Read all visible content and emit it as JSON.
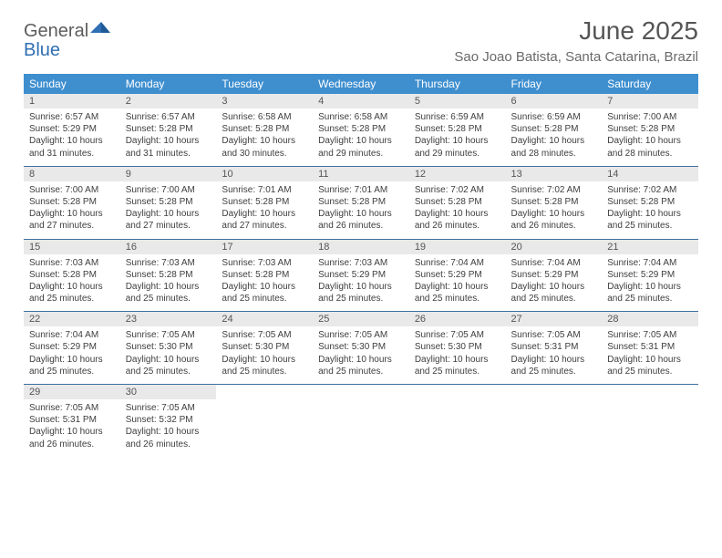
{
  "brand": {
    "general": "General",
    "blue": "Blue"
  },
  "title": "June 2025",
  "location": "Sao Joao Batista, Santa Catarina, Brazil",
  "colors": {
    "header_bg": "#3f8fcf",
    "header_text": "#ffffff",
    "week_border": "#3f6fa0",
    "daynum_bg": "#e9e9e9",
    "daynum_text": "#555555",
    "body_text": "#3e3e3e",
    "title_text": "#555555",
    "location_text": "#6a6a6a",
    "logo_gray": "#5c5c5c",
    "logo_blue": "#2f6fb3"
  },
  "dow": [
    "Sunday",
    "Monday",
    "Tuesday",
    "Wednesday",
    "Thursday",
    "Friday",
    "Saturday"
  ],
  "weeks": [
    [
      {
        "n": "1",
        "sr": "Sunrise: 6:57 AM",
        "ss": "Sunset: 5:29 PM",
        "d1": "Daylight: 10 hours",
        "d2": "and 31 minutes."
      },
      {
        "n": "2",
        "sr": "Sunrise: 6:57 AM",
        "ss": "Sunset: 5:28 PM",
        "d1": "Daylight: 10 hours",
        "d2": "and 31 minutes."
      },
      {
        "n": "3",
        "sr": "Sunrise: 6:58 AM",
        "ss": "Sunset: 5:28 PM",
        "d1": "Daylight: 10 hours",
        "d2": "and 30 minutes."
      },
      {
        "n": "4",
        "sr": "Sunrise: 6:58 AM",
        "ss": "Sunset: 5:28 PM",
        "d1": "Daylight: 10 hours",
        "d2": "and 29 minutes."
      },
      {
        "n": "5",
        "sr": "Sunrise: 6:59 AM",
        "ss": "Sunset: 5:28 PM",
        "d1": "Daylight: 10 hours",
        "d2": "and 29 minutes."
      },
      {
        "n": "6",
        "sr": "Sunrise: 6:59 AM",
        "ss": "Sunset: 5:28 PM",
        "d1": "Daylight: 10 hours",
        "d2": "and 28 minutes."
      },
      {
        "n": "7",
        "sr": "Sunrise: 7:00 AM",
        "ss": "Sunset: 5:28 PM",
        "d1": "Daylight: 10 hours",
        "d2": "and 28 minutes."
      }
    ],
    [
      {
        "n": "8",
        "sr": "Sunrise: 7:00 AM",
        "ss": "Sunset: 5:28 PM",
        "d1": "Daylight: 10 hours",
        "d2": "and 27 minutes."
      },
      {
        "n": "9",
        "sr": "Sunrise: 7:00 AM",
        "ss": "Sunset: 5:28 PM",
        "d1": "Daylight: 10 hours",
        "d2": "and 27 minutes."
      },
      {
        "n": "10",
        "sr": "Sunrise: 7:01 AM",
        "ss": "Sunset: 5:28 PM",
        "d1": "Daylight: 10 hours",
        "d2": "and 27 minutes."
      },
      {
        "n": "11",
        "sr": "Sunrise: 7:01 AM",
        "ss": "Sunset: 5:28 PM",
        "d1": "Daylight: 10 hours",
        "d2": "and 26 minutes."
      },
      {
        "n": "12",
        "sr": "Sunrise: 7:02 AM",
        "ss": "Sunset: 5:28 PM",
        "d1": "Daylight: 10 hours",
        "d2": "and 26 minutes."
      },
      {
        "n": "13",
        "sr": "Sunrise: 7:02 AM",
        "ss": "Sunset: 5:28 PM",
        "d1": "Daylight: 10 hours",
        "d2": "and 26 minutes."
      },
      {
        "n": "14",
        "sr": "Sunrise: 7:02 AM",
        "ss": "Sunset: 5:28 PM",
        "d1": "Daylight: 10 hours",
        "d2": "and 25 minutes."
      }
    ],
    [
      {
        "n": "15",
        "sr": "Sunrise: 7:03 AM",
        "ss": "Sunset: 5:28 PM",
        "d1": "Daylight: 10 hours",
        "d2": "and 25 minutes."
      },
      {
        "n": "16",
        "sr": "Sunrise: 7:03 AM",
        "ss": "Sunset: 5:28 PM",
        "d1": "Daylight: 10 hours",
        "d2": "and 25 minutes."
      },
      {
        "n": "17",
        "sr": "Sunrise: 7:03 AM",
        "ss": "Sunset: 5:28 PM",
        "d1": "Daylight: 10 hours",
        "d2": "and 25 minutes."
      },
      {
        "n": "18",
        "sr": "Sunrise: 7:03 AM",
        "ss": "Sunset: 5:29 PM",
        "d1": "Daylight: 10 hours",
        "d2": "and 25 minutes."
      },
      {
        "n": "19",
        "sr": "Sunrise: 7:04 AM",
        "ss": "Sunset: 5:29 PM",
        "d1": "Daylight: 10 hours",
        "d2": "and 25 minutes."
      },
      {
        "n": "20",
        "sr": "Sunrise: 7:04 AM",
        "ss": "Sunset: 5:29 PM",
        "d1": "Daylight: 10 hours",
        "d2": "and 25 minutes."
      },
      {
        "n": "21",
        "sr": "Sunrise: 7:04 AM",
        "ss": "Sunset: 5:29 PM",
        "d1": "Daylight: 10 hours",
        "d2": "and 25 minutes."
      }
    ],
    [
      {
        "n": "22",
        "sr": "Sunrise: 7:04 AM",
        "ss": "Sunset: 5:29 PM",
        "d1": "Daylight: 10 hours",
        "d2": "and 25 minutes."
      },
      {
        "n": "23",
        "sr": "Sunrise: 7:05 AM",
        "ss": "Sunset: 5:30 PM",
        "d1": "Daylight: 10 hours",
        "d2": "and 25 minutes."
      },
      {
        "n": "24",
        "sr": "Sunrise: 7:05 AM",
        "ss": "Sunset: 5:30 PM",
        "d1": "Daylight: 10 hours",
        "d2": "and 25 minutes."
      },
      {
        "n": "25",
        "sr": "Sunrise: 7:05 AM",
        "ss": "Sunset: 5:30 PM",
        "d1": "Daylight: 10 hours",
        "d2": "and 25 minutes."
      },
      {
        "n": "26",
        "sr": "Sunrise: 7:05 AM",
        "ss": "Sunset: 5:30 PM",
        "d1": "Daylight: 10 hours",
        "d2": "and 25 minutes."
      },
      {
        "n": "27",
        "sr": "Sunrise: 7:05 AM",
        "ss": "Sunset: 5:31 PM",
        "d1": "Daylight: 10 hours",
        "d2": "and 25 minutes."
      },
      {
        "n": "28",
        "sr": "Sunrise: 7:05 AM",
        "ss": "Sunset: 5:31 PM",
        "d1": "Daylight: 10 hours",
        "d2": "and 25 minutes."
      }
    ],
    [
      {
        "n": "29",
        "sr": "Sunrise: 7:05 AM",
        "ss": "Sunset: 5:31 PM",
        "d1": "Daylight: 10 hours",
        "d2": "and 26 minutes."
      },
      {
        "n": "30",
        "sr": "Sunrise: 7:05 AM",
        "ss": "Sunset: 5:32 PM",
        "d1": "Daylight: 10 hours",
        "d2": "and 26 minutes."
      },
      null,
      null,
      null,
      null,
      null
    ]
  ]
}
